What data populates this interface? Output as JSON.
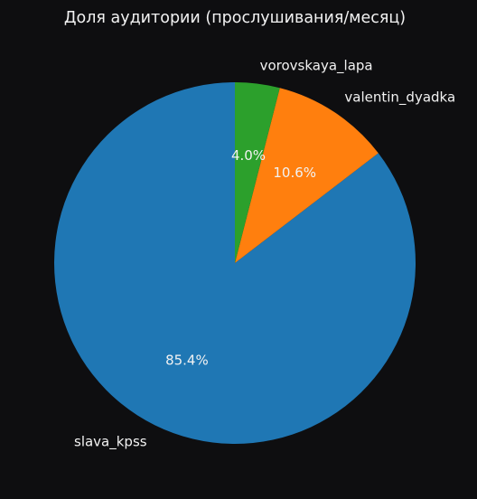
{
  "chart_data": {
    "type": "pie",
    "title": "Доля аудитории (прослушивания/месяц)",
    "start_angle_deg": 90,
    "direction": "counterclockwise",
    "slices": [
      {
        "label": "slava_kpss",
        "value": 85.4,
        "pct_label": "85.4%",
        "color": "#1f77b4"
      },
      {
        "label": "valentin_dyadka",
        "value": 10.6,
        "pct_label": "10.6%",
        "color": "#ff7f0e"
      },
      {
        "label": "vorovskaya_lapa",
        "value": 4.0,
        "pct_label": "4.0%",
        "color": "#2ca02c"
      }
    ],
    "background": "#0e0e10",
    "text_color": "#f2f2f2"
  }
}
